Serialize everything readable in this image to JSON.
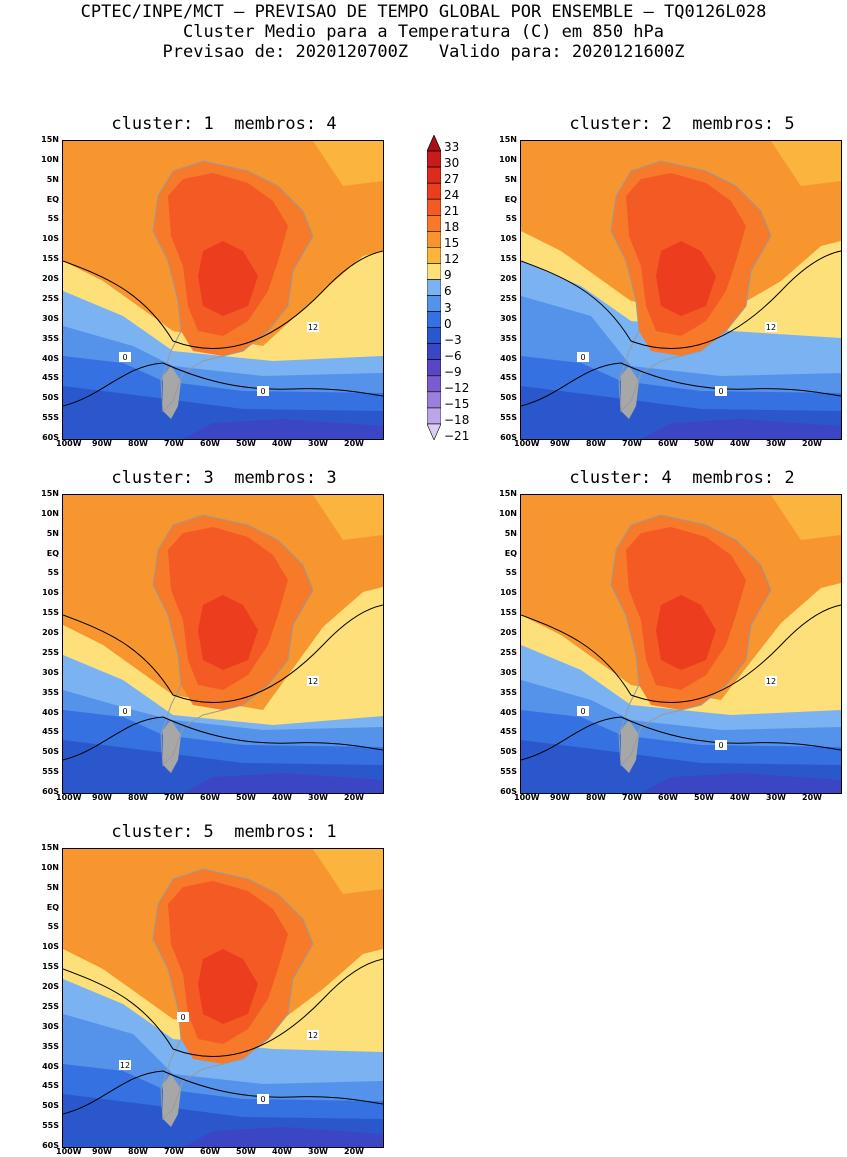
{
  "header": {
    "line1": "CPTEC/INPE/MCT – PREVISAO DE TEMPO GLOBAL POR ENSEMBLE – TQ0126L028",
    "line2": "Cluster Medio para a Temperatura (C) em 850 hPa",
    "line3": "Previsao de: 2020120700Z   Valido para: 2020121600Z"
  },
  "panels": [
    {
      "title": "cluster: 1  membros: 4",
      "contours": [
        "12",
        "0",
        "0"
      ]
    },
    {
      "title": "cluster: 2  membros: 5",
      "contours": [
        "12",
        "0",
        "0"
      ]
    },
    {
      "title": "cluster: 3  membros: 3",
      "contours": [
        "12",
        "0"
      ]
    },
    {
      "title": "cluster: 4  membros: 2",
      "contours": [
        "12",
        "0",
        "0"
      ]
    },
    {
      "title": "cluster: 5  membros: 1",
      "contours": [
        "12",
        "12",
        "0",
        "0"
      ]
    }
  ],
  "lat_labels": [
    "15N",
    "10N",
    "5N",
    "EQ",
    "5S",
    "10S",
    "15S",
    "20S",
    "25S",
    "30S",
    "35S",
    "40S",
    "45S",
    "50S",
    "55S",
    "60S"
  ],
  "lon_labels": [
    "100W",
    "90W",
    "80W",
    "70W",
    "60W",
    "50W",
    "40W",
    "30W",
    "20W"
  ],
  "colorbar": {
    "labels": [
      "33",
      "30",
      "27",
      "24",
      "21",
      "18",
      "15",
      "12",
      "9",
      "6",
      "3",
      "0",
      "−3",
      "−6",
      "−9",
      "−12",
      "−15",
      "−18",
      "−21"
    ],
    "colors": [
      "#a50f15",
      "#c91b1b",
      "#dd2b1c",
      "#ec3e1f",
      "#f45a23",
      "#f67a2a",
      "#f7962f",
      "#fbb43e",
      "#fde07a",
      "#7ab2f2",
      "#5592ea",
      "#3571e0",
      "#2a58cc",
      "#3b46c4",
      "#5a45c4",
      "#7b5bd0",
      "#9b7fdc",
      "#bca6e8",
      "#dccdf3"
    ]
  },
  "legend_colors": {
    "land_border": "#9a9a9a",
    "ice_gray": "#a7a7a7"
  }
}
